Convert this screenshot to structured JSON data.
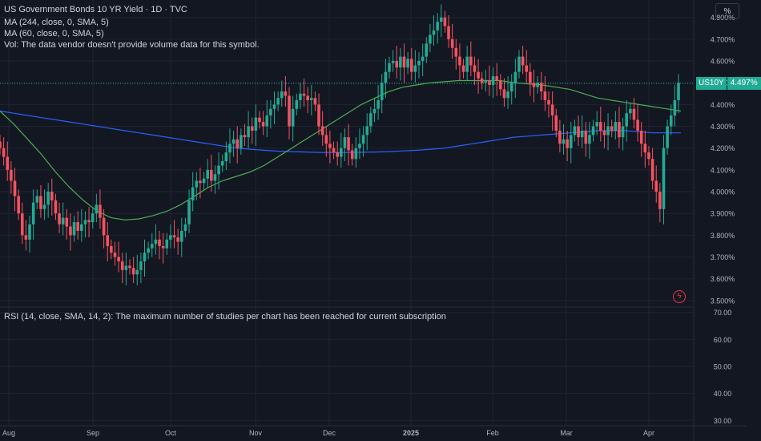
{
  "legend": {
    "title": "US Government Bonds 10 YR Yield · 1D · TVC",
    "ma1": "MA (244, close, 0, SMA, 5)",
    "ma2": "MA (60, close, 0, SMA, 5)",
    "vol": "Vol: The data vendor doesn't provide volume data for this symbol.",
    "rsi": "RSI (14, close, SMA, 14, 2): The maximum number of studies per chart has been reached for current subscription"
  },
  "unit_button": "%",
  "last_price": {
    "symbol": "US10Y",
    "value": "4.497%",
    "y": 4.497
  },
  "colors": {
    "up": "#22ab94",
    "down": "#f7525f",
    "ma244": "#2962ff",
    "ma60": "#4caf50",
    "bg": "#131722",
    "grid": "#1f2430"
  },
  "icons": {
    "bolt": "lightning-icon"
  },
  "bolt_glyph": "ϟ",
  "chart_data": [
    {
      "type": "line",
      "title": "US Government Bonds 10 YR Yield",
      "ylim": [
        3.47,
        4.88
      ],
      "y_ticks": [
        "4.800%",
        "4.700%",
        "4.600%",
        "4.500%",
        "4.400%",
        "4.300%",
        "4.200%",
        "4.100%",
        "4.000%",
        "3.900%",
        "3.800%",
        "3.700%",
        "3.600%",
        "3.500%"
      ],
      "x_ticks": [
        "Aug",
        "Sep",
        "Oct",
        "Nov",
        "Dec",
        "2025",
        "Feb",
        "Mar",
        "Apr"
      ],
      "candles_close": [
        4.2,
        4.16,
        4.1,
        4.05,
        3.98,
        3.9,
        3.8,
        3.78,
        3.85,
        3.95,
        3.98,
        3.92,
        3.94,
        4.0,
        3.96,
        3.9,
        3.85,
        3.88,
        3.84,
        3.8,
        3.86,
        3.82,
        3.85,
        3.87,
        3.86,
        3.9,
        3.94,
        3.88,
        3.8,
        3.75,
        3.72,
        3.7,
        3.68,
        3.64,
        3.66,
        3.65,
        3.62,
        3.64,
        3.68,
        3.72,
        3.74,
        3.76,
        3.78,
        3.75,
        3.74,
        3.78,
        3.8,
        3.79,
        3.77,
        3.82,
        3.85,
        3.96,
        4.02,
        4.05,
        4.04,
        4.06,
        4.1,
        4.05,
        4.08,
        4.12,
        4.14,
        4.18,
        4.22,
        4.24,
        4.2,
        4.26,
        4.25,
        4.3,
        4.28,
        4.34,
        4.32,
        4.3,
        4.35,
        4.38,
        4.4,
        4.43,
        4.46,
        4.44,
        4.3,
        4.38,
        4.42,
        4.45,
        4.44,
        4.42,
        4.43,
        4.4,
        4.3,
        4.26,
        4.22,
        4.2,
        4.18,
        4.16,
        4.2,
        4.25,
        4.19,
        4.15,
        4.2,
        4.22,
        4.26,
        4.3,
        4.36,
        4.38,
        4.42,
        4.5,
        4.55,
        4.59,
        4.6,
        4.57,
        4.62,
        4.57,
        4.61,
        4.55,
        4.58,
        4.6,
        4.62,
        4.68,
        4.72,
        4.74,
        4.78,
        4.8,
        4.76,
        4.7,
        4.66,
        4.62,
        4.58,
        4.55,
        4.62,
        4.58,
        4.55,
        4.52,
        4.5,
        4.51,
        4.49,
        4.53,
        4.51,
        4.47,
        4.43,
        4.46,
        4.5,
        4.55,
        4.62,
        4.58,
        4.55,
        4.5,
        4.48,
        4.5,
        4.46,
        4.42,
        4.4,
        4.35,
        4.28,
        4.22,
        4.24,
        4.2,
        4.26,
        4.3,
        4.25,
        4.28,
        4.22,
        4.26,
        4.3,
        4.32,
        4.28,
        4.26,
        4.3,
        4.28,
        4.32,
        4.25,
        4.3,
        4.36,
        4.38,
        4.33,
        4.28,
        4.22,
        4.18,
        4.15,
        4.05,
        4.0,
        3.92,
        4.2,
        4.3,
        4.35,
        4.42,
        4.5
      ],
      "series": [
        {
          "name": "MA (244, close, 0, SMA, 5)",
          "values": [
            4.37,
            4.36,
            4.35,
            4.34,
            4.33,
            4.32,
            4.31,
            4.3,
            4.29,
            4.28,
            4.27,
            4.26,
            4.25,
            4.24,
            4.23,
            4.22,
            4.21,
            4.2,
            4.195,
            4.19,
            4.186,
            4.184,
            4.182,
            4.18,
            4.18,
            4.18,
            4.181,
            4.182,
            4.184,
            4.187,
            4.19,
            4.195,
            4.2,
            4.21,
            4.22,
            4.23,
            4.24,
            4.25,
            4.255,
            4.26,
            4.265,
            4.27,
            4.275,
            4.28,
            4.28,
            4.28,
            4.275,
            4.27,
            4.27,
            4.27
          ]
        },
        {
          "name": "MA (60, close, 0, SMA, 5)",
          "values": [
            4.37,
            4.31,
            4.24,
            4.17,
            4.09,
            4.02,
            3.96,
            3.91,
            3.88,
            3.87,
            3.875,
            3.89,
            3.91,
            3.94,
            3.98,
            4.02,
            4.05,
            4.07,
            4.09,
            4.12,
            4.16,
            4.2,
            4.24,
            4.28,
            4.32,
            4.36,
            4.4,
            4.43,
            4.46,
            4.48,
            4.49,
            4.5,
            4.505,
            4.51,
            4.51,
            4.51,
            4.51,
            4.5,
            4.495,
            4.49,
            4.48,
            4.47,
            4.45,
            4.43,
            4.42,
            4.41,
            4.4,
            4.39,
            4.38,
            4.37
          ]
        }
      ]
    },
    {
      "type": "line",
      "title": "RSI (14, close, SMA, 14, 2)",
      "ylim": [
        28,
        72
      ],
      "y_ticks": [
        "70.00",
        "60.00",
        "50.00",
        "40.00",
        "30.00"
      ]
    }
  ]
}
